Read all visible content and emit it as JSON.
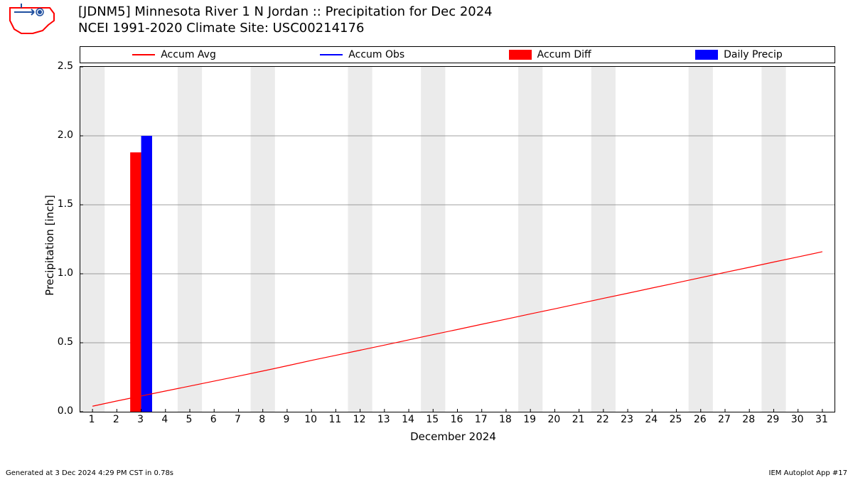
{
  "title": {
    "line1": "[JDNM5] Minnesota River 1 N Jordan :: Precipitation for Dec 2024",
    "line2": "NCEI 1991-2020 Climate Site: USC00214176"
  },
  "legend": {
    "items": [
      {
        "label": "Accum Avg",
        "type": "line",
        "color": "#ff0000"
      },
      {
        "label": "Accum Obs",
        "type": "line",
        "color": "#0000ff"
      },
      {
        "label": "Accum Diff",
        "type": "rect",
        "color": "#ff0000"
      },
      {
        "label": "Daily Precip",
        "type": "rect",
        "color": "#0000ff"
      }
    ]
  },
  "chart": {
    "type": "bar+line",
    "xlabel": "December 2024",
    "ylabel": "Precipitation [inch]",
    "xlim": [
      0.5,
      31.5
    ],
    "ylim": [
      0.0,
      2.5
    ],
    "ytick_step": 0.5,
    "x_ticks": [
      1,
      2,
      3,
      4,
      5,
      6,
      7,
      8,
      9,
      10,
      11,
      12,
      13,
      14,
      15,
      16,
      17,
      18,
      19,
      20,
      21,
      22,
      23,
      24,
      25,
      26,
      27,
      28,
      29,
      30,
      31
    ],
    "grid_bands_x": [
      [
        0.5,
        1.5
      ],
      [
        4.5,
        5.5
      ],
      [
        7.5,
        8.5
      ],
      [
        11.5,
        12.5
      ],
      [
        14.5,
        15.5
      ],
      [
        18.5,
        19.5
      ],
      [
        21.5,
        22.5
      ],
      [
        25.5,
        26.5
      ],
      [
        28.5,
        29.5
      ]
    ],
    "grid_band_color": "#ebebeb",
    "ygrid_color": "#808080",
    "background_color": "#ffffff",
    "line_series": {
      "color": "#ff0000",
      "width": 1.2,
      "points": [
        [
          1,
          0.04
        ],
        [
          2,
          0.078
        ],
        [
          3,
          0.114
        ],
        [
          4,
          0.15
        ],
        [
          5,
          0.186
        ],
        [
          6,
          0.222
        ],
        [
          7,
          0.258
        ],
        [
          8,
          0.295
        ],
        [
          9,
          0.333
        ],
        [
          10,
          0.372
        ],
        [
          11,
          0.409
        ],
        [
          12,
          0.446
        ],
        [
          13,
          0.483
        ],
        [
          14,
          0.521
        ],
        [
          15,
          0.559
        ],
        [
          16,
          0.596
        ],
        [
          17,
          0.634
        ],
        [
          18,
          0.671
        ],
        [
          19,
          0.709
        ],
        [
          20,
          0.746
        ],
        [
          21,
          0.784
        ],
        [
          22,
          0.822
        ],
        [
          23,
          0.859
        ],
        [
          24,
          0.897
        ],
        [
          25,
          0.934
        ],
        [
          26,
          0.972
        ],
        [
          27,
          1.01
        ],
        [
          28,
          1.047
        ],
        [
          29,
          1.085
        ],
        [
          30,
          1.122
        ],
        [
          31,
          1.16
        ]
      ]
    },
    "bars": [
      {
        "x": 3,
        "height": 1.88,
        "width": 0.45,
        "align": "right",
        "color": "#ff0000"
      },
      {
        "x": 3,
        "height": 2.0,
        "width": 0.45,
        "align": "left",
        "color": "#0000ff"
      }
    ],
    "tick_size": 4
  },
  "footer": {
    "left": "Generated at 3 Dec 2024 4:29 PM CST in 0.78s",
    "right": "IEM Autoplot App #17"
  },
  "logo": {
    "stroke": "#ff0000",
    "accent": "#2050a0"
  }
}
